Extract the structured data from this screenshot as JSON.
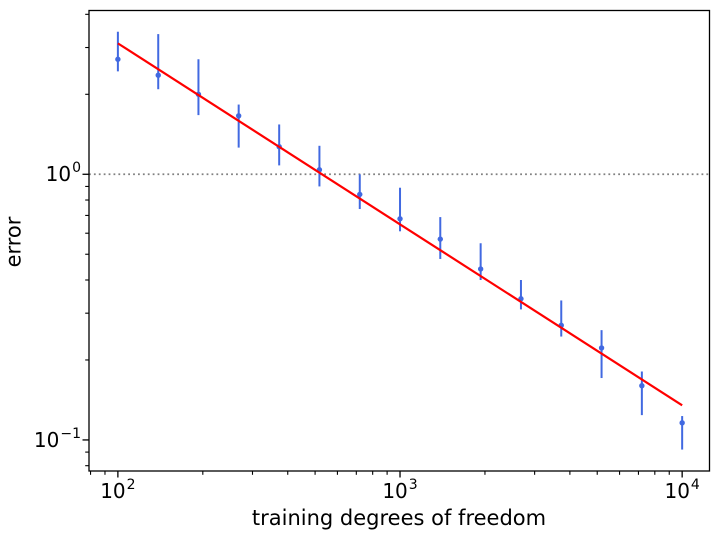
{
  "chart_data": {
    "type": "scatter",
    "title": "",
    "xlabel": "training degrees of freedom",
    "ylabel": "error",
    "x_scale": "log",
    "y_scale": "log",
    "xlim": [
      79,
      12500
    ],
    "ylim": [
      0.0764,
      4.135
    ],
    "grid": false,
    "legend": "none",
    "background_color": "#ffffff",
    "axis_color": "#000000",
    "x_major_ticks": {
      "values": [
        100,
        1000,
        10000
      ],
      "labels": [
        {
          "base": "10",
          "exp": "2"
        },
        {
          "base": "10",
          "exp": "3"
        },
        {
          "base": "10",
          "exp": "4"
        }
      ]
    },
    "x_minor_ticks": [
      80,
      90,
      200,
      300,
      400,
      500,
      600,
      700,
      800,
      900,
      2000,
      3000,
      4000,
      5000,
      6000,
      7000,
      8000,
      9000
    ],
    "y_major_ticks": {
      "values": [
        1,
        0.1
      ],
      "labels": [
        {
          "base": "10",
          "exp": "0"
        },
        {
          "base": "10",
          "exp": "−1"
        }
      ]
    },
    "y_minor_ticks": [
      4,
      3,
      2,
      0.9,
      0.8,
      0.7,
      0.6,
      0.5,
      0.4,
      0.3,
      0.2,
      0.09,
      0.08
    ],
    "series": [
      {
        "name": "reference-level",
        "type": "hline",
        "y": 1.0,
        "color": "#808080",
        "linestyle": "dotted",
        "linewidth": 1.8
      },
      {
        "name": "measured-error-points",
        "type": "errorbar",
        "color": "#4169e1",
        "marker": "point",
        "x": [
          100,
          139,
          193,
          268,
          373,
          518,
          720,
          1000,
          1389,
          1931,
          2683,
          3728,
          5180,
          7197,
          10000
        ],
        "y": [
          2.71,
          2.36,
          2.0,
          1.66,
          1.27,
          1.04,
          0.84,
          0.68,
          0.57,
          0.44,
          0.34,
          0.27,
          0.222,
          0.16,
          0.116
        ],
        "y_lo": [
          2.44,
          2.09,
          1.67,
          1.26,
          1.08,
          0.9,
          0.74,
          0.61,
          0.48,
          0.4,
          0.31,
          0.245,
          0.171,
          0.124,
          0.092
        ],
        "y_hi": [
          3.44,
          3.37,
          2.71,
          1.83,
          1.54,
          1.28,
          1.0,
          0.89,
          0.69,
          0.55,
          0.4,
          0.335,
          0.259,
          0.181,
          0.123
        ]
      },
      {
        "name": "power-law-fit",
        "type": "line",
        "color": "#ff0000",
        "linewidth": 2.2,
        "x": [
          100,
          10000
        ],
        "y": [
          3.11,
          0.135
        ]
      }
    ]
  }
}
